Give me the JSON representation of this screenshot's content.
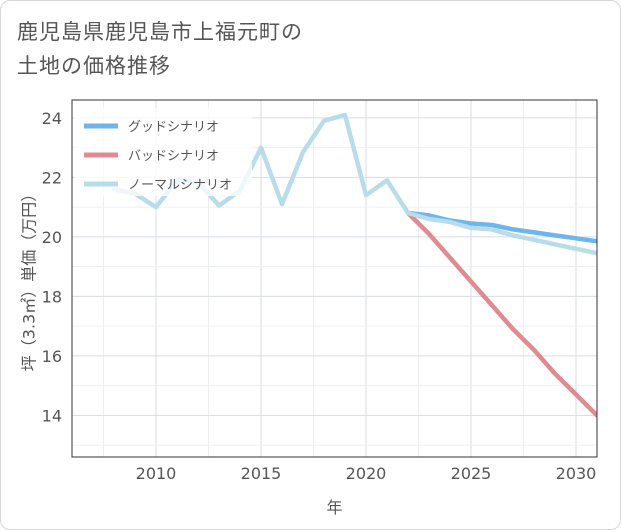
{
  "title_lines": [
    "鹿児島県鹿児島市上福元町の",
    "土地の価格推移"
  ],
  "chart_data": {
    "type": "line",
    "title": "鹿児島県鹿児島市上福元町の土地の価格推移",
    "xlabel": "年",
    "ylabel": "坪（3.3㎡）単価（万円）",
    "xlim": [
      2006,
      2031
    ],
    "ylim": [
      12.6,
      24.6
    ],
    "x_ticks": [
      2010,
      2015,
      2020,
      2025,
      2030
    ],
    "y_ticks": [
      14,
      16,
      18,
      20,
      22,
      24
    ],
    "grid": true,
    "legend_position": "top-left",
    "series": [
      {
        "name": "グッドシナリオ",
        "color": "#6cb6ea",
        "x": [
          2022,
          2023,
          2024,
          2025,
          2026,
          2027,
          2028,
          2029,
          2030,
          2031
        ],
        "values": [
          20.8,
          20.72,
          20.55,
          20.45,
          20.4,
          20.25,
          20.15,
          20.05,
          19.95,
          19.85
        ]
      },
      {
        "name": "バッドシナリオ",
        "color": "#e08a91",
        "x": [
          2022,
          2023,
          2024,
          2025,
          2026,
          2027,
          2028,
          2029,
          2030,
          2031
        ],
        "values": [
          20.8,
          20.1,
          19.3,
          18.5,
          17.7,
          16.9,
          16.2,
          15.4,
          14.7,
          14.0
        ]
      },
      {
        "name": "ノーマルシナリオ",
        "color": "#b9dcea",
        "x": [
          2008,
          2009,
          2010,
          2011,
          2012,
          2013,
          2014,
          2015,
          2016,
          2017,
          2018,
          2019,
          2020,
          2021,
          2022,
          2023,
          2024,
          2025,
          2026,
          2027,
          2028,
          2029,
          2030,
          2031
        ],
        "values": [
          21.6,
          21.45,
          21.0,
          21.9,
          21.85,
          21.05,
          21.55,
          23.0,
          21.1,
          22.85,
          23.9,
          24.1,
          21.4,
          21.9,
          20.8,
          20.6,
          20.5,
          20.3,
          20.25,
          20.05,
          19.9,
          19.75,
          19.6,
          19.45
        ]
      }
    ]
  }
}
